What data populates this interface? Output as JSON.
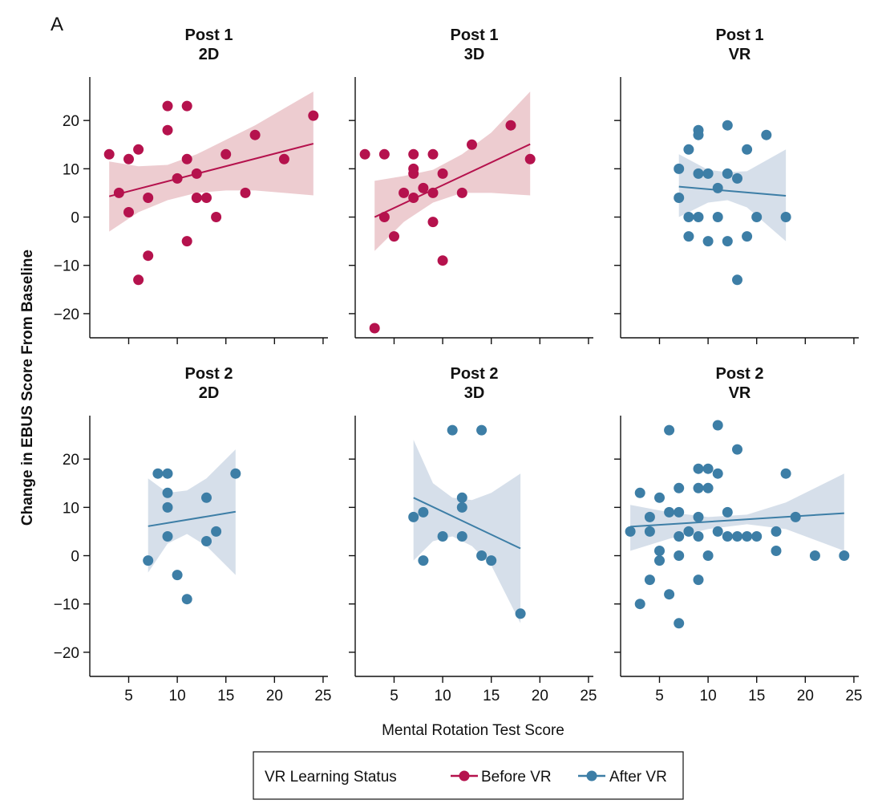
{
  "figure": {
    "panel_letter": "A",
    "xlabel": "Mental Rotation Test Score",
    "ylabel": "Change in EBUS Score From Baseline",
    "legend": {
      "title": "VR Learning Status",
      "entries": [
        "Before VR",
        "After VR"
      ]
    }
  },
  "colors": {
    "before": "#b5124d",
    "after": "#3d7ea6",
    "before_band": "#eac3c8",
    "after_band": "#cfd9e6"
  },
  "chart_data": [
    {
      "type": "scatter",
      "title_line1": "Post 1",
      "title_line2": "2D",
      "status": "before",
      "xlim": [
        1,
        25.5
      ],
      "ylim": [
        -25,
        29
      ],
      "xticks": [
        5,
        10,
        15,
        20,
        25
      ],
      "yticks": [
        -20,
        -10,
        0,
        10,
        20
      ],
      "x": [
        3,
        4,
        5,
        5,
        6,
        6,
        7,
        7,
        9,
        9,
        10,
        11,
        11,
        11,
        12,
        12,
        13,
        14,
        15,
        17,
        18,
        21,
        24
      ],
      "y": [
        13,
        5,
        12,
        1,
        -13,
        14,
        -8,
        4,
        23,
        18,
        8,
        23,
        12,
        -5,
        9,
        4,
        4,
        0,
        13,
        5,
        17,
        12,
        21
      ],
      "fit": {
        "x": [
          3,
          24
        ],
        "y": [
          4.3,
          15.2
        ]
      },
      "band": {
        "x": [
          3,
          6,
          9,
          12,
          15,
          18,
          21,
          24
        ],
        "lower": [
          -3,
          1,
          3.5,
          5,
          5.5,
          5.5,
          5,
          4.5
        ],
        "upper": [
          11.5,
          10.5,
          10.8,
          13,
          16,
          19,
          22.5,
          26
        ]
      }
    },
    {
      "type": "scatter",
      "title_line1": "Post 1",
      "title_line2": "3D",
      "status": "before",
      "xlim": [
        1,
        25.5
      ],
      "ylim": [
        -25,
        29
      ],
      "xticks": [
        5,
        10,
        15,
        20,
        25
      ],
      "yticks": [
        -20,
        -10,
        0,
        10,
        20
      ],
      "x": [
        2,
        3,
        4,
        4,
        5,
        6,
        7,
        7,
        7,
        7,
        8,
        9,
        9,
        9,
        10,
        10,
        12,
        13,
        17,
        19
      ],
      "y": [
        13,
        -23,
        13,
        0,
        -4,
        5,
        13,
        10,
        9,
        4,
        6,
        13,
        5,
        -1,
        9,
        -9,
        5,
        15,
        19,
        12
      ],
      "fit": {
        "x": [
          3,
          19
        ],
        "y": [
          0,
          15.1
        ]
      },
      "band": {
        "x": [
          3,
          6,
          9,
          12,
          15,
          19
        ],
        "lower": [
          -7,
          -1,
          3,
          5,
          5,
          4.5
        ],
        "upper": [
          7.5,
          8.5,
          9.8,
          13,
          17.5,
          26
        ]
      }
    },
    {
      "type": "scatter",
      "title_line1": "Post 1",
      "title_line2": "VR",
      "status": "after",
      "xlim": [
        1,
        25.5
      ],
      "ylim": [
        -25,
        29
      ],
      "xticks": [
        5,
        10,
        15,
        20,
        25
      ],
      "yticks": [
        -20,
        -10,
        0,
        10,
        20
      ],
      "x": [
        7,
        7,
        8,
        8,
        8,
        9,
        9,
        9,
        9,
        10,
        10,
        11,
        11,
        12,
        12,
        12,
        13,
        13,
        14,
        14,
        15,
        16,
        18
      ],
      "y": [
        10,
        4,
        14,
        0,
        -4,
        18,
        17,
        9,
        0,
        9,
        -5,
        6,
        0,
        19,
        9,
        -5,
        8,
        -13,
        14,
        -4,
        0,
        17,
        0
      ],
      "fit": {
        "x": [
          7,
          18
        ],
        "y": [
          6.3,
          4.4
        ]
      },
      "band": {
        "x": [
          7,
          10,
          12,
          14,
          18
        ],
        "lower": [
          0,
          3,
          3.5,
          2,
          -5
        ],
        "upper": [
          13,
          9.8,
          9.3,
          9.5,
          14
        ]
      }
    },
    {
      "type": "scatter",
      "title_line1": "Post 2",
      "title_line2": "2D",
      "status": "after",
      "xlim": [
        1,
        25.5
      ],
      "ylim": [
        -25,
        29
      ],
      "xticks": [
        5,
        10,
        15,
        20,
        25
      ],
      "yticks": [
        -20,
        -10,
        0,
        10,
        20
      ],
      "x": [
        7,
        8,
        9,
        9,
        9,
        9,
        10,
        11,
        13,
        13,
        14,
        16
      ],
      "y": [
        -1,
        17,
        17,
        13,
        10,
        4,
        -4,
        -9,
        12,
        3,
        5,
        17
      ],
      "fit": {
        "x": [
          7,
          16
        ],
        "y": [
          6.1,
          9.1
        ]
      },
      "band": {
        "x": [
          7,
          9,
          11,
          13,
          16
        ],
        "lower": [
          -3.5,
          2.5,
          4.5,
          2,
          -4
        ],
        "upper": [
          16,
          13,
          13.5,
          16,
          22
        ]
      }
    },
    {
      "type": "scatter",
      "title_line1": "Post 2",
      "title_line2": "3D",
      "status": "after",
      "xlim": [
        1,
        25.5
      ],
      "ylim": [
        -25,
        29
      ],
      "xticks": [
        5,
        10,
        15,
        20,
        25
      ],
      "yticks": [
        -20,
        -10,
        0,
        10,
        20
      ],
      "x": [
        7,
        8,
        8,
        10,
        11,
        12,
        12,
        12,
        14,
        14,
        15,
        18
      ],
      "y": [
        8,
        9,
        -1,
        4,
        26,
        12,
        10,
        4,
        26,
        0,
        -1,
        -12
      ],
      "fit": {
        "x": [
          7,
          18
        ],
        "y": [
          12,
          1.5
        ]
      },
      "band": {
        "x": [
          7,
          9,
          11,
          13,
          15,
          18
        ],
        "lower": [
          -1,
          3,
          4,
          2,
          -2,
          -14
        ],
        "upper": [
          24,
          15,
          12,
          11.5,
          13,
          17
        ]
      }
    },
    {
      "type": "scatter",
      "title_line1": "Post 2",
      "title_line2": "VR",
      "status": "after",
      "xlim": [
        1,
        25.5
      ],
      "ylim": [
        -25,
        29
      ],
      "xticks": [
        5,
        10,
        15,
        20,
        25
      ],
      "yticks": [
        -20,
        -10,
        0,
        10,
        20
      ],
      "x": [
        2,
        3,
        3,
        4,
        4,
        4,
        5,
        5,
        5,
        6,
        6,
        6,
        7,
        7,
        7,
        7,
        7,
        8,
        9,
        9,
        9,
        9,
        9,
        10,
        10,
        10,
        11,
        11,
        11,
        12,
        12,
        13,
        13,
        14,
        15,
        17,
        17,
        18,
        19,
        21,
        24
      ],
      "y": [
        5,
        13,
        -10,
        8,
        5,
        -5,
        12,
        1,
        -1,
        26,
        9,
        -8,
        14,
        9,
        4,
        0,
        -14,
        5,
        18,
        14,
        8,
        4,
        -5,
        18,
        14,
        0,
        27,
        17,
        5,
        9,
        4,
        22,
        4,
        4,
        4,
        5,
        1,
        17,
        8,
        0,
        0
      ],
      "fit": {
        "x": [
          2,
          24
        ],
        "y": [
          6,
          8.8
        ]
      },
      "band": {
        "x": [
          2,
          6,
          10,
          14,
          18,
          24
        ],
        "lower": [
          1,
          3.5,
          5.5,
          6.5,
          5.5,
          1
        ],
        "upper": [
          10.5,
          9,
          8,
          8.5,
          11,
          17
        ]
      }
    }
  ]
}
